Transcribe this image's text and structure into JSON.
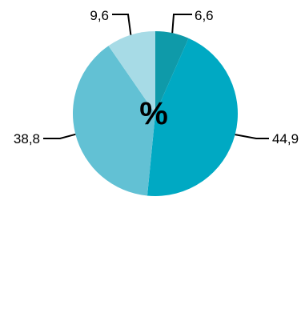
{
  "chart_data": {
    "type": "pie",
    "center_label": "%",
    "start_angle_deg": 0,
    "direction": "clockwise",
    "slices": [
      {
        "label": "6,6",
        "value": 6.6,
        "color": "#0f9aa9"
      },
      {
        "label": "44,9",
        "value": 44.9,
        "color": "#00a9c3"
      },
      {
        "label": "38,8",
        "value": 38.8,
        "color": "#62c1d4"
      },
      {
        "label": "9,6",
        "value": 9.6,
        "color": "#a7dbe6"
      }
    ]
  }
}
